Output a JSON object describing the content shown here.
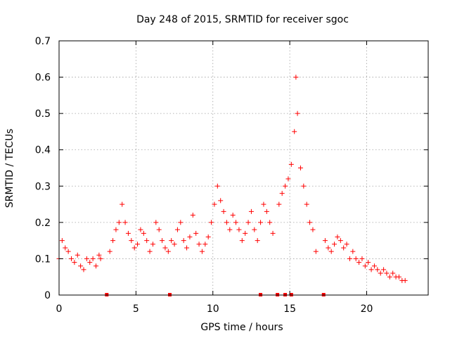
{
  "chart_data": {
    "type": "scatter",
    "title": "Day 248 of 2015, SRMTID for receiver sgoc",
    "xlabel": "GPS time / hours",
    "ylabel": "SRMTID / TECUs",
    "xlim": [
      0,
      24
    ],
    "ylim": [
      0,
      0.7
    ],
    "x_ticks": [
      0,
      5,
      10,
      15,
      20
    ],
    "x_tick_labels": [
      "0",
      "5",
      "10",
      "15",
      "20"
    ],
    "y_ticks": [
      0,
      0.1,
      0.2,
      0.3,
      0.4,
      0.5,
      0.6,
      0.7
    ],
    "y_tick_labels": [
      "0",
      "0.1",
      "0.2",
      "0.3",
      "0.4",
      "0.5",
      "0.6",
      "0.7"
    ],
    "grid": true,
    "marker": "plus",
    "color": "#ff0000",
    "series": [
      {
        "name": "SRMTID",
        "x": [
          0.0,
          0.2,
          0.4,
          0.6,
          0.8,
          1.0,
          1.2,
          1.4,
          1.6,
          1.8,
          2.0,
          2.2,
          2.4,
          2.6,
          2.7,
          3.3,
          3.5,
          3.7,
          3.9,
          4.1,
          4.3,
          4.5,
          4.7,
          4.9,
          5.1,
          5.3,
          5.5,
          5.7,
          5.9,
          6.1,
          6.3,
          6.5,
          6.7,
          6.9,
          7.1,
          7.3,
          7.5,
          7.7,
          7.9,
          8.1,
          8.3,
          8.5,
          8.7,
          8.9,
          9.1,
          9.3,
          9.5,
          9.7,
          9.9,
          10.1,
          10.3,
          10.5,
          10.7,
          10.9,
          11.1,
          11.3,
          11.5,
          11.7,
          11.9,
          12.1,
          12.3,
          12.5,
          12.7,
          12.9,
          13.1,
          13.3,
          13.5,
          13.7,
          13.9,
          14.3,
          14.5,
          14.7,
          14.9,
          15.1,
          15.3,
          15.4,
          15.5,
          15.7,
          15.9,
          16.1,
          16.3,
          16.5,
          16.7,
          17.3,
          17.5,
          17.7,
          17.9,
          18.1,
          18.3,
          18.5,
          18.7,
          18.9,
          19.1,
          19.3,
          19.5,
          19.7,
          19.9,
          20.1,
          20.3,
          20.5,
          20.7,
          20.9,
          21.1,
          21.3,
          21.5,
          21.7,
          21.9,
          22.1,
          22.3,
          22.5
        ],
        "y": [
          0.1,
          0.15,
          0.13,
          0.12,
          0.1,
          0.09,
          0.11,
          0.08,
          0.07,
          0.1,
          0.09,
          0.1,
          0.08,
          0.11,
          0.1,
          0.12,
          0.15,
          0.18,
          0.2,
          0.25,
          0.2,
          0.17,
          0.15,
          0.13,
          0.14,
          0.18,
          0.17,
          0.15,
          0.12,
          0.14,
          0.2,
          0.18,
          0.15,
          0.13,
          0.12,
          0.15,
          0.14,
          0.18,
          0.2,
          0.15,
          0.13,
          0.16,
          0.22,
          0.17,
          0.14,
          0.12,
          0.14,
          0.16,
          0.2,
          0.25,
          0.3,
          0.26,
          0.23,
          0.2,
          0.18,
          0.22,
          0.2,
          0.18,
          0.15,
          0.17,
          0.2,
          0.23,
          0.18,
          0.15,
          0.2,
          0.25,
          0.23,
          0.2,
          0.17,
          0.25,
          0.28,
          0.3,
          0.32,
          0.36,
          0.45,
          0.6,
          0.5,
          0.35,
          0.3,
          0.25,
          0.2,
          0.18,
          0.12,
          0.15,
          0.13,
          0.12,
          0.14,
          0.16,
          0.15,
          0.13,
          0.14,
          0.1,
          0.12,
          0.1,
          0.09,
          0.1,
          0.08,
          0.09,
          0.07,
          0.08,
          0.07,
          0.06,
          0.07,
          0.06,
          0.05,
          0.06,
          0.05,
          0.05,
          0.04,
          0.04
        ]
      }
    ],
    "gap_markers_x": [
      3.1,
      7.2,
      13.1,
      14.2,
      14.7,
      15.1,
      17.2
    ]
  }
}
